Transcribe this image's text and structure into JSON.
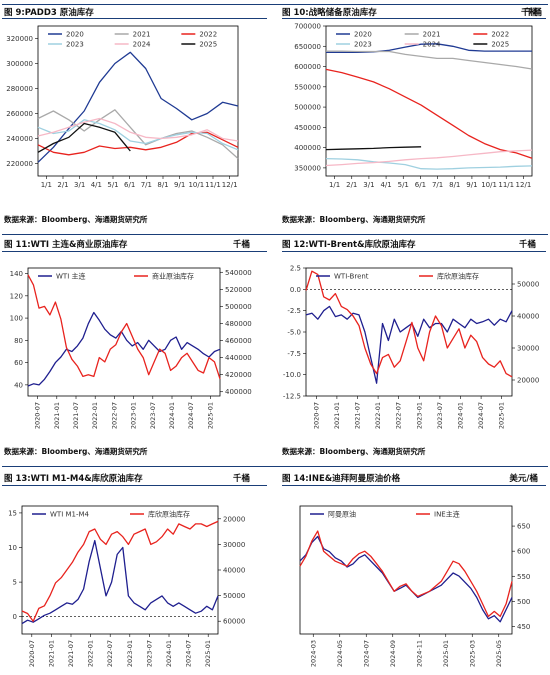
{
  "source_text": "数据来源：Bloomberg、海通期货研究所",
  "chart_data": [
    {
      "type": "line",
      "id": "c1",
      "title": "图 9:PADD3 原油库存",
      "unit": "千桶",
      "x_ticks": [
        "1/1",
        "2/1",
        "3/1",
        "4/1",
        "5/1",
        "6/1",
        "7/1",
        "8/1",
        "9/1",
        "10/1",
        "11/1",
        "12/1"
      ],
      "ylim": [
        210000,
        330000
      ],
      "y_ticks": [
        220000,
        240000,
        260000,
        280000,
        300000,
        320000
      ],
      "legend_placement": "top",
      "series": [
        {
          "name": "2020",
          "color": "#1f3a93",
          "values": [
            221000,
            233000,
            248000,
            262000,
            285000,
            300000,
            309000,
            296000,
            272000,
            264000,
            255000,
            260000,
            269000,
            266000
          ]
        },
        {
          "name": "2021",
          "color": "#a9a9a9",
          "values": [
            256000,
            262000,
            255000,
            246000,
            255000,
            263000,
            249000,
            235000,
            240000,
            244000,
            246000,
            241000,
            235000,
            224000
          ]
        },
        {
          "name": "2022",
          "color": "#e8231e",
          "values": [
            235000,
            229000,
            227000,
            229000,
            234000,
            232000,
            233000,
            231000,
            233000,
            237000,
            244000,
            245000,
            239000,
            233000
          ]
        },
        {
          "name": "2023",
          "color": "#9fd0e0",
          "values": [
            249000,
            244000,
            246000,
            255000,
            252000,
            247000,
            238000,
            236000,
            240000,
            243000,
            245000,
            244000,
            236000,
            231000
          ]
        },
        {
          "name": "2024",
          "color": "#f6b8c6",
          "values": [
            242000,
            245000,
            249000,
            253000,
            256000,
            252000,
            245000,
            241000,
            240000,
            241000,
            243000,
            247000,
            240000,
            238000
          ]
        },
        {
          "name": "2025",
          "color": "#111111",
          "values": [
            229000,
            236000,
            241000,
            252000,
            249000,
            245000,
            230000
          ]
        }
      ]
    },
    {
      "type": "line",
      "id": "c2",
      "title": "图 10:战略储备原油库存",
      "unit": "千桶",
      "x_ticks": [
        "1/1",
        "2/1",
        "3/1",
        "4/1",
        "5/1",
        "6/1",
        "7/1",
        "8/1",
        "9/1",
        "10/1",
        "11/1",
        "12/1"
      ],
      "ylim": [
        330000,
        700000
      ],
      "y_ticks": [
        350000,
        400000,
        450000,
        500000,
        550000,
        600000,
        650000,
        700000
      ],
      "legend_placement": "top",
      "series": [
        {
          "name": "2020",
          "color": "#1f3a93",
          "values": [
            635000,
            635000,
            635000,
            636000,
            640000,
            648000,
            655000,
            656000,
            650000,
            640000,
            638000,
            638000,
            638000,
            638000
          ]
        },
        {
          "name": "2021",
          "color": "#a9a9a9",
          "values": [
            638000,
            638000,
            637000,
            637000,
            637000,
            630000,
            625000,
            620000,
            620000,
            615000,
            610000,
            605000,
            600000,
            594000
          ]
        },
        {
          "name": "2022",
          "color": "#e8231e",
          "values": [
            593000,
            585000,
            574000,
            562000,
            545000,
            525000,
            505000,
            480000,
            455000,
            430000,
            410000,
            395000,
            387000,
            374000
          ]
        },
        {
          "name": "2023",
          "color": "#9fd0e0",
          "values": [
            373000,
            372000,
            370000,
            365000,
            362000,
            358000,
            348000,
            347000,
            348000,
            350000,
            351000,
            352000,
            354000,
            355000
          ]
        },
        {
          "name": "2024",
          "color": "#f6b8c6",
          "values": [
            356000,
            358000,
            361000,
            363000,
            366000,
            370000,
            373000,
            375000,
            378000,
            382000,
            386000,
            390000,
            392000,
            394000
          ]
        },
        {
          "name": "2025",
          "color": "#111111",
          "values": [
            395000,
            396000,
            397000,
            398000,
            400000,
            401000,
            402000
          ]
        }
      ]
    },
    {
      "type": "line",
      "id": "c3",
      "title": "图 11:WTI 主连&商业原油库存",
      "unit": "千桶",
      "x_ticks": [
        "2020-07",
        "2021-01",
        "2021-07",
        "2022-01",
        "2022-07",
        "2023-01",
        "2023-07",
        "2024-01",
        "2024-07",
        "2025-01"
      ],
      "ylim_left": [
        30,
        145
      ],
      "y_ticks_left": [
        40,
        60,
        80,
        100,
        120,
        140
      ],
      "ylim_right": [
        395000,
        545000
      ],
      "y_ticks_right": [
        400000,
        420000,
        440000,
        460000,
        480000,
        500000,
        520000,
        540000
      ],
      "legend_placement": "top",
      "series": [
        {
          "name": "WTI 主连",
          "axis": "left",
          "color": "#1f1f8f",
          "values": [
            39,
            41,
            40,
            45,
            52,
            60,
            65,
            72,
            70,
            75,
            82,
            95,
            105,
            98,
            90,
            85,
            82,
            88,
            80,
            75,
            78,
            72,
            80,
            75,
            70,
            72,
            80,
            83,
            72,
            78,
            75,
            72,
            68,
            65,
            70,
            72
          ]
        },
        {
          "name": "商业原油库存",
          "axis": "right",
          "color": "#e8231e",
          "values": [
            537000,
            525000,
            498000,
            500000,
            490000,
            505000,
            485000,
            452000,
            438000,
            430000,
            418000,
            420000,
            418000,
            440000,
            435000,
            450000,
            455000,
            470000,
            480000,
            465000,
            450000,
            440000,
            420000,
            435000,
            450000,
            445000,
            425000,
            430000,
            440000,
            445000,
            435000,
            425000,
            422000,
            440000,
            435000,
            415000
          ]
        }
      ]
    },
    {
      "type": "line",
      "id": "c4",
      "title": "图 12:WTI-Brent&库欣原油库存",
      "unit": "千桶",
      "x_ticks": [
        "2020-07",
        "2021-01",
        "2021-07",
        "2022-01",
        "2022-07",
        "2023-01",
        "2023-07",
        "2024-01",
        "2024-07",
        "2025-01"
      ],
      "ylim_left": [
        -12.5,
        2.5
      ],
      "y_ticks_left": [
        -12.5,
        -10.0,
        -7.5,
        -5.0,
        -2.5,
        0.0,
        2.5
      ],
      "ylim_right": [
        15000,
        55000
      ],
      "y_ticks_right": [
        20000,
        30000,
        40000,
        50000
      ],
      "legend_placement": "top",
      "series": [
        {
          "name": "WTI-Brent",
          "axis": "left",
          "color": "#1f1f8f",
          "values": [
            -3.0,
            -2.8,
            -3.5,
            -2.5,
            -2.0,
            -3.2,
            -3.0,
            -3.5,
            -2.8,
            -3.0,
            -5.0,
            -8.0,
            -11.0,
            -4.0,
            -6.0,
            -3.5,
            -5.0,
            -4.5,
            -4.0,
            -5.5,
            -3.5,
            -4.5,
            -4.0,
            -4.0,
            -5.0,
            -3.5,
            -4.0,
            -4.5,
            -3.5,
            -4.0,
            -3.8,
            -3.5,
            -4.2,
            -3.5,
            -3.8,
            -2.5
          ]
        },
        {
          "name": "库欣原油库存",
          "axis": "right",
          "color": "#e8231e",
          "values": [
            48000,
            54000,
            53000,
            46000,
            45000,
            47000,
            43000,
            42000,
            40000,
            37000,
            30000,
            25000,
            22000,
            27000,
            28000,
            24000,
            26000,
            32000,
            38000,
            30000,
            26000,
            35000,
            40000,
            37000,
            30000,
            33000,
            36000,
            30000,
            34000,
            32000,
            27000,
            25000,
            24000,
            26000,
            22000,
            21000
          ]
        }
      ]
    },
    {
      "type": "line",
      "id": "c5",
      "title": "图 13:WTI M1-M4&库欣原油库存",
      "unit": "千桶",
      "x_ticks": [
        "2020-07",
        "2021-01",
        "2021-07",
        "2022-01",
        "2022-07",
        "2023-01",
        "2023-07",
        "2024-01",
        "2024-07",
        "2025-01"
      ],
      "ylim_left": [
        -2.5,
        16
      ],
      "y_ticks_left": [
        0,
        5,
        10,
        15
      ],
      "ylim_right": [
        65000,
        15000
      ],
      "y_ticks_right": [
        20000,
        30000,
        40000,
        50000,
        60000
      ],
      "y_right_inverted": true,
      "legend_placement": "top",
      "series": [
        {
          "name": "WTI M1-M4",
          "axis": "left",
          "color": "#1f1f8f",
          "values": [
            -1.0,
            -0.5,
            -0.8,
            -0.3,
            0.2,
            0.5,
            1.0,
            1.5,
            2.0,
            1.8,
            2.5,
            4.0,
            8.0,
            11.0,
            7.0,
            3.0,
            5.0,
            9.0,
            10.0,
            3.0,
            2.0,
            1.5,
            1.0,
            2.0,
            2.5,
            3.0,
            2.0,
            1.5,
            2.0,
            1.5,
            1.0,
            0.5,
            0.8,
            1.5,
            1.0,
            3.0
          ]
        },
        {
          "name": "库欣原油库存",
          "axis": "right",
          "color": "#e8231e",
          "values": [
            56000,
            57000,
            60000,
            55000,
            54000,
            50000,
            45000,
            43000,
            40000,
            37000,
            33000,
            30000,
            25000,
            24000,
            28000,
            30000,
            26000,
            25000,
            27000,
            30000,
            26000,
            25000,
            24000,
            30000,
            29000,
            27000,
            24000,
            26000,
            22000,
            23000,
            24000,
            22000,
            22000,
            23000,
            22000,
            21000
          ]
        }
      ]
    },
    {
      "type": "line",
      "id": "c6",
      "title": "图 14:INE&迪拜阿曼原油价格",
      "unit": "美元/桶",
      "x_ticks": [
        "2024-03",
        "2024-05",
        "2024-07",
        "2024-09",
        "2024-11",
        "2025-01",
        "2025-03",
        "2025-05"
      ],
      "ylim_left": [
        58,
        100
      ],
      "y_ticks_left": [],
      "ylim_right": [
        435,
        690
      ],
      "y_ticks_right": [
        450,
        500,
        550,
        600,
        650
      ],
      "legend_placement": "top",
      "series": [
        {
          "name": "阿曼原油",
          "axis": "left",
          "color": "#1f1f8f",
          "values": [
            82,
            84,
            88,
            90,
            86,
            85,
            83,
            82,
            80,
            81,
            83,
            84,
            82,
            80,
            78,
            75,
            72,
            73,
            74,
            72,
            70,
            71,
            72,
            73,
            74,
            76,
            78,
            77,
            75,
            73,
            70,
            66,
            63,
            64,
            62,
            66,
            70
          ]
        },
        {
          "name": "INE主连",
          "axis": "right",
          "color": "#e8231e",
          "values": [
            570,
            590,
            620,
            640,
            600,
            590,
            580,
            575,
            570,
            585,
            595,
            600,
            590,
            575,
            560,
            540,
            520,
            530,
            535,
            520,
            510,
            515,
            520,
            530,
            540,
            560,
            580,
            575,
            560,
            540,
            520,
            495,
            470,
            480,
            470,
            495,
            540
          ]
        }
      ]
    }
  ]
}
